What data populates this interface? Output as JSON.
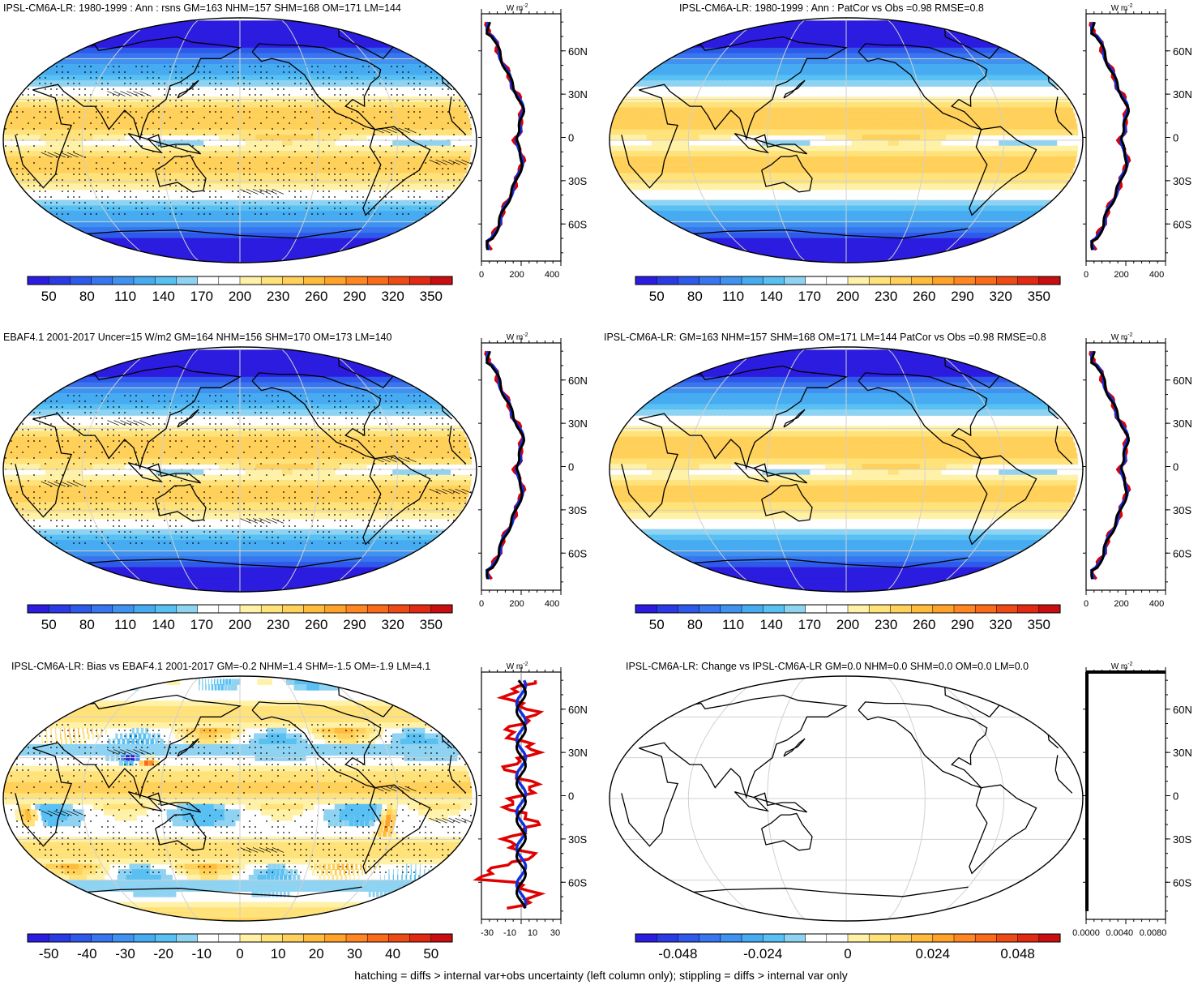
{
  "panels": [
    {
      "title": "IPSL-CM6A-LR: 1980-1999 : Ann : rsns GM=163 NHM=157 SHM=168 OM=171 LM=144",
      "field": "abs",
      "stipple": true,
      "hatch": true,
      "cb": "abs",
      "profile": "abs"
    },
    {
      "title": "IPSL-CM6A-LR: 1980-1999 : Ann : PatCor vs Obs =0.98 RMSE=0.8",
      "field": "abs",
      "stipple": false,
      "hatch": false,
      "cb": "abs",
      "profile": "abs"
    },
    {
      "title": "EBAF4.1 2001-2017 Uncer=15 W/m2 GM=164 NHM=156 SHM=170 OM=173 LM=140",
      "field": "abs",
      "stipple": true,
      "hatch": true,
      "cb": "abs",
      "profile": "abs"
    },
    {
      "title": "IPSL-CM6A-LR: GM=163 NHM=157 SHM=168 OM=171 LM=144 PatCor vs Obs =0.98 RMSE=0.8",
      "field": "abs",
      "stipple": false,
      "hatch": false,
      "cb": "abs",
      "profile": "abs"
    },
    {
      "title": "IPSL-CM6A-LR: Bias vs EBAF4.1 2001-2017 GM=-0.2 NHM=1.4 SHM=-1.5 OM=-1.9 LM=4.1",
      "field": "bias",
      "stipple": true,
      "hatch": true,
      "cb": "bias",
      "profile": "bias"
    },
    {
      "title": "IPSL-CM6A-LR: Change vs IPSL-CM6A-LR GM=0.0 NHM=0.0 SHM=0.0 OM=0.0 LM=0.0",
      "field": "none",
      "stipple": false,
      "hatch": false,
      "cb": "change",
      "profile": "change"
    }
  ],
  "colorbars": {
    "abs": {
      "labels": [
        "50",
        "80",
        "110",
        "140",
        "170",
        "200",
        "230",
        "260",
        "290",
        "320",
        "350"
      ]
    },
    "bias": {
      "labels": [
        "-50",
        "-40",
        "-30",
        "-20",
        "-10",
        "0",
        "10",
        "20",
        "30",
        "40",
        "50"
      ]
    },
    "change": {
      "labels": [
        "-0.048",
        "-0.024",
        "0",
        "0.024",
        "0.048"
      ]
    }
  },
  "profile_axes": {
    "unit": "W m",
    "unit_sup": "-2",
    "lat_labels": [
      "60N",
      "30N",
      "0",
      "30S",
      "60S"
    ],
    "x_abs": [
      "0",
      "200",
      "400"
    ],
    "x_bias": [
      "-30",
      "-10",
      "10",
      "30"
    ],
    "x_change": [
      "0.0000",
      "0.0040",
      "0.0080"
    ]
  },
  "footnote": "hatching = diffs > internal var+obs uncertainty (left column only); stippling = diffs > internal var only"
}
